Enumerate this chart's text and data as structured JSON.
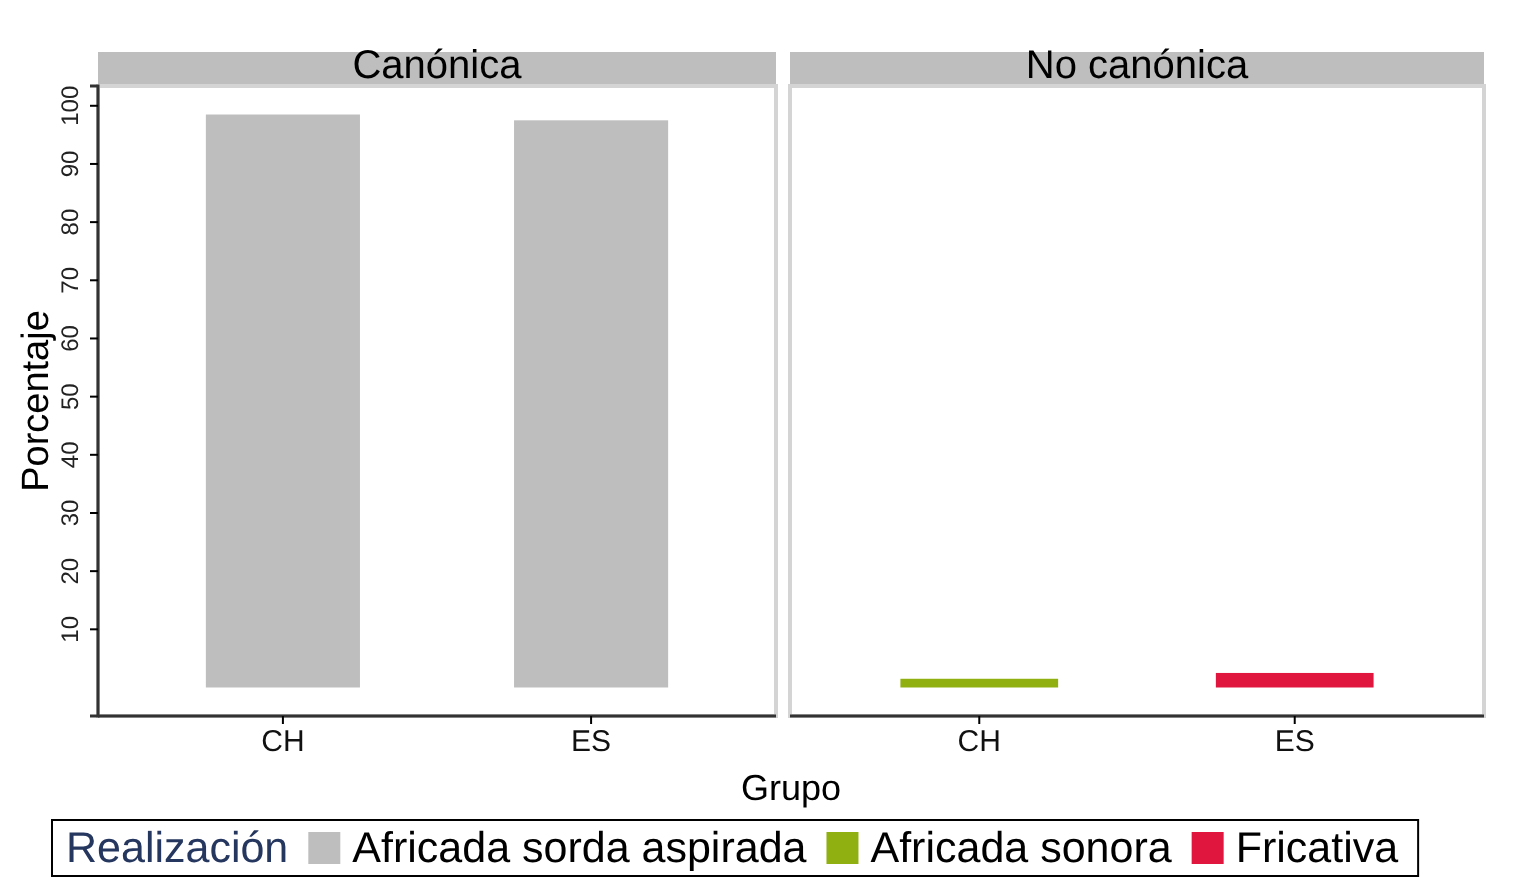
{
  "chart_data": [
    {
      "type": "bar",
      "title": "Canónica",
      "categories": [
        "CH",
        "ES"
      ],
      "ylabel": "Porcentaje",
      "xlabel": "Grupo",
      "ylim": [
        -4.9,
        103.4
      ],
      "yticks": [
        10,
        20,
        30,
        40,
        50,
        60,
        70,
        80,
        90,
        100
      ],
      "legend": "bottom",
      "legend_title": "Realización",
      "series": [
        {
          "name": "Africada sorda aspirada",
          "color": "#bebebe",
          "values": [
            98.5,
            97.5
          ]
        }
      ]
    },
    {
      "type": "bar",
      "title": "No canónica",
      "categories": [
        "CH",
        "ES"
      ],
      "ylim": [
        -4.9,
        103.4
      ],
      "tick_labels": "x",
      "legend": "bottom",
      "series": [
        {
          "name": "Africada sonora",
          "color": "#8fb010",
          "values": [
            1.5,
            null
          ]
        },
        {
          "name": "Fricativa",
          "color": "#e0163f",
          "values": [
            null,
            2.5
          ]
        }
      ]
    }
  ]
}
